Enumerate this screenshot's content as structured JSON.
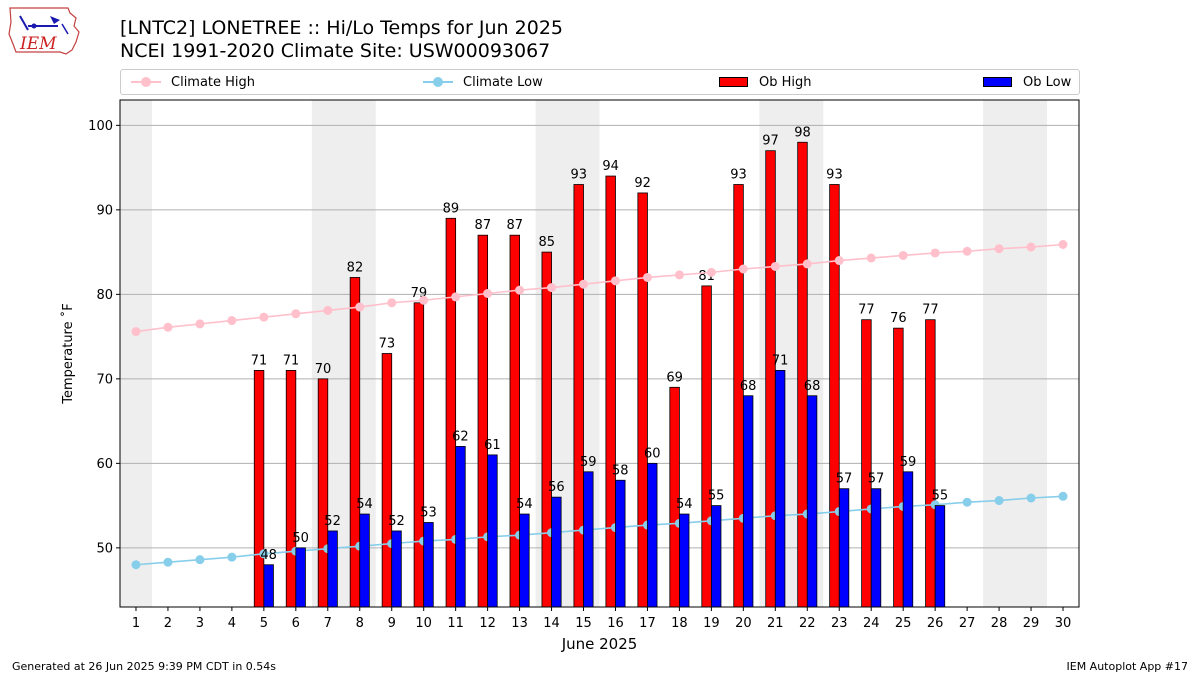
{
  "logo": {
    "text": "IEM"
  },
  "header": {
    "title": "[LNTC2] LONETREE :: Hi/Lo Temps for Jun 2025",
    "subtitle": "NCEI 1991-2020 Climate Site: USW00093067"
  },
  "legend": {
    "position": "top",
    "items": [
      "Climate High",
      "Climate Low",
      "Ob High",
      "Ob Low"
    ]
  },
  "colors": {
    "ob_high": "#ff0000",
    "ob_low": "#0000ff",
    "climate_high": "#ffc0cb",
    "climate_low": "#87ceeb",
    "weekend_band": "#eeeeee"
  },
  "footer": {
    "left": "Generated at 26 Jun 2025 9:39 PM CDT in 0.54s",
    "right": "IEM Autoplot App #17"
  },
  "chart_data": {
    "type": "bar",
    "xlabel": "June 2025",
    "ylabel": "Temperature ˚F",
    "xlim": [
      0.5,
      30.5
    ],
    "ylim": [
      43,
      103
    ],
    "yticks": [
      50,
      60,
      70,
      80,
      90,
      100
    ],
    "grid": true,
    "days": [
      1,
      2,
      3,
      4,
      5,
      6,
      7,
      8,
      9,
      10,
      11,
      12,
      13,
      14,
      15,
      16,
      17,
      18,
      19,
      20,
      21,
      22,
      23,
      24,
      25,
      26,
      27,
      28,
      29,
      30
    ],
    "weekend_days": [
      1,
      7,
      8,
      14,
      15,
      21,
      22,
      28,
      29
    ],
    "series": [
      {
        "name": "Ob High",
        "kind": "bar",
        "days": [
          5,
          6,
          7,
          8,
          9,
          10,
          11,
          12,
          13,
          14,
          15,
          16,
          17,
          18,
          19,
          20,
          21,
          22,
          23,
          24,
          25,
          26
        ],
        "values": [
          71,
          71,
          70,
          82,
          73,
          79,
          89,
          87,
          87,
          85,
          93,
          94,
          92,
          69,
          81,
          93,
          97,
          98,
          93,
          77,
          76,
          77
        ]
      },
      {
        "name": "Ob Low",
        "kind": "bar",
        "days": [
          5,
          6,
          7,
          8,
          9,
          10,
          11,
          12,
          13,
          14,
          15,
          16,
          17,
          18,
          19,
          20,
          21,
          22,
          23,
          24,
          25,
          26
        ],
        "values": [
          48,
          50,
          52,
          54,
          52,
          53,
          62,
          61,
          54,
          56,
          59,
          58,
          60,
          54,
          55,
          68,
          71,
          68,
          57,
          57,
          59,
          55
        ]
      },
      {
        "name": "Climate High",
        "kind": "line",
        "values": [
          75.6,
          76.1,
          76.5,
          76.9,
          77.3,
          77.7,
          78.1,
          78.5,
          79.0,
          79.3,
          79.7,
          80.1,
          80.5,
          80.8,
          81.2,
          81.6,
          82.0,
          82.3,
          82.6,
          83.0,
          83.3,
          83.6,
          84.0,
          84.3,
          84.6,
          84.9,
          85.1,
          85.4,
          85.6,
          85.9
        ]
      },
      {
        "name": "Climate Low",
        "kind": "line",
        "values": [
          48.0,
          48.3,
          48.6,
          48.9,
          49.3,
          49.6,
          49.9,
          50.2,
          50.5,
          50.8,
          51.0,
          51.3,
          51.5,
          51.8,
          52.1,
          52.4,
          52.7,
          52.9,
          53.2,
          53.5,
          53.8,
          54.0,
          54.3,
          54.6,
          54.9,
          55.1,
          55.4,
          55.6,
          55.9,
          56.1
        ]
      }
    ]
  }
}
